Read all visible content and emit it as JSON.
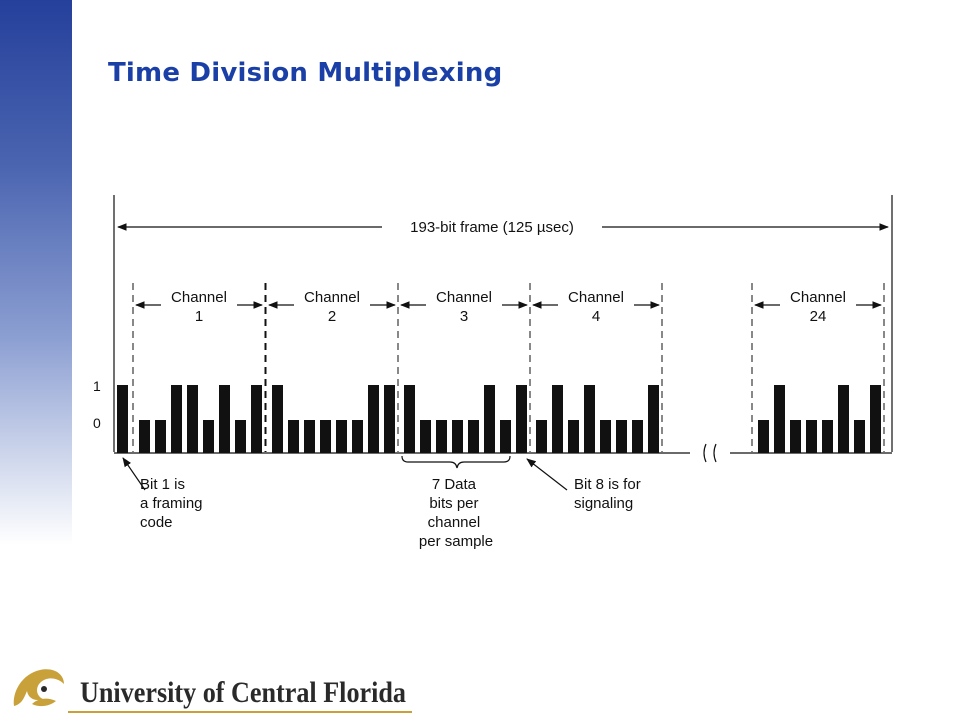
{
  "slide": {
    "title": "Time Division Multiplexing"
  },
  "diagram": {
    "frame_label": "193-bit frame  (125 µsec)",
    "level_high": "1",
    "level_low": "0",
    "channels": [
      {
        "title": "Channel",
        "number": "1",
        "bits": [
          0,
          0,
          1,
          1,
          0,
          1,
          0,
          1
        ]
      },
      {
        "title": "Channel",
        "number": "2",
        "bits": [
          1,
          0,
          0,
          0,
          0,
          0,
          1,
          1
        ]
      },
      {
        "title": "Channel",
        "number": "3",
        "bits": [
          1,
          0,
          0,
          0,
          0,
          1,
          0,
          1
        ]
      },
      {
        "title": "Channel",
        "number": "4",
        "bits": [
          0,
          1,
          0,
          1,
          0,
          0,
          0,
          1
        ]
      },
      {
        "title": "Channel",
        "number": "24",
        "bits": [
          0,
          1,
          0,
          0,
          0,
          1,
          0,
          1
        ]
      }
    ],
    "framing_bit": 1,
    "annotations": {
      "framing": [
        "Bit 1 is",
        "a framing",
        "code"
      ],
      "data_bits": [
        "7 Data",
        "bits per",
        "channel",
        "per sample"
      ],
      "signaling": [
        "Bit 8 is for",
        "signaling"
      ]
    }
  },
  "footer": {
    "university": "University of Central Florida",
    "colors": {
      "gold": "#c9a13b",
      "dark": "#2a2a2a"
    }
  }
}
